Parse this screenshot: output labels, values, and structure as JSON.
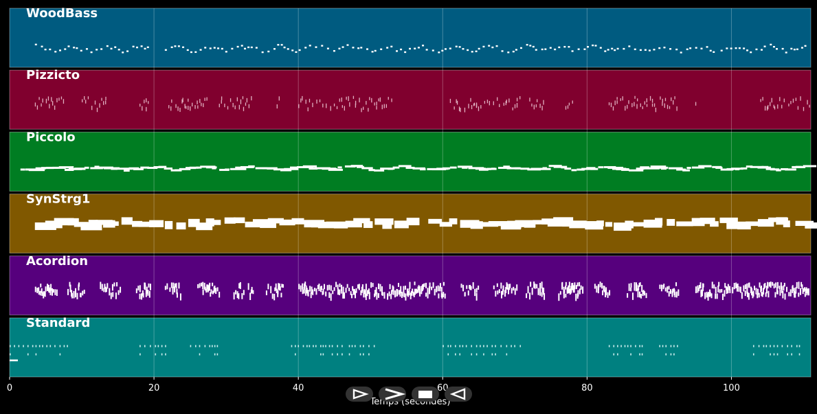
{
  "chart_data": {
    "type": "piano-roll",
    "xlabel": "Temps (secondes)",
    "xlim": [
      0,
      111
    ],
    "xticks": [
      0,
      20,
      40,
      60,
      80,
      100
    ],
    "grid": true,
    "tracks": [
      {
        "name": "WoodBass",
        "color": "#005b80",
        "style": "dots",
        "segments": [
          [
            3.5,
            19.5
          ],
          [
            21.5,
            97.5
          ],
          [
            98.5,
            110.5
          ]
        ],
        "density": 1.6,
        "level": 0.67
      },
      {
        "name": "Pizzicto",
        "color": "#80002e",
        "style": "ticks",
        "segments": [
          [
            3.5,
            7.5
          ],
          [
            10,
            13.5
          ],
          [
            18,
            19
          ],
          [
            22,
            27
          ],
          [
            29,
            33.5
          ],
          [
            37,
            37.5
          ],
          [
            40,
            50
          ],
          [
            50.5,
            53
          ],
          [
            61,
            67
          ],
          [
            67.5,
            71
          ],
          [
            72,
            74
          ],
          [
            77,
            78
          ],
          [
            83,
            92.5
          ],
          [
            95,
            95.5
          ],
          [
            104,
            110.5
          ]
        ],
        "density": 2.2,
        "level": 0.55
      },
      {
        "name": "Piccolo",
        "color": "#007d22",
        "style": "bars",
        "segments": [
          [
            1.5,
            110.5
          ]
        ],
        "density": 1.3,
        "level": 0.63
      },
      {
        "name": "SynStrg1",
        "color": "#805800",
        "style": "blocks",
        "segments": [
          [
            3.5,
            19.5
          ],
          [
            21.5,
            56
          ],
          [
            58,
            92.5
          ],
          [
            94.5,
            110.5
          ]
        ],
        "density": 0.8,
        "level": 0.52
      },
      {
        "name": "Acordion",
        "color": "#56007d",
        "style": "chords",
        "segments": [
          [
            3.5,
            6
          ],
          [
            8,
            10
          ],
          [
            12.5,
            15
          ],
          [
            17.5,
            19.5
          ],
          [
            21.5,
            23.5
          ],
          [
            26,
            28.5
          ],
          [
            31,
            32
          ],
          [
            33,
            33.5
          ],
          [
            35.5,
            37.5
          ],
          [
            40,
            60
          ],
          [
            62.5,
            65
          ],
          [
            67,
            69.5
          ],
          [
            71.5,
            74
          ],
          [
            76,
            79
          ],
          [
            81,
            83
          ],
          [
            85.5,
            87.5
          ],
          [
            90,
            92.5
          ],
          [
            95,
            110.5
          ]
        ],
        "density": 2.0,
        "level": 0.55
      },
      {
        "name": "Standard",
        "color": "#008080",
        "style": "drums",
        "segments": [
          [
            0,
            1
          ],
          [
            1.2,
            8
          ],
          [
            18,
            22
          ],
          [
            25,
            29
          ],
          [
            39,
            46
          ],
          [
            47,
            51
          ],
          [
            60,
            71
          ],
          [
            83,
            88
          ],
          [
            90,
            93
          ],
          [
            103,
            109.5
          ]
        ],
        "density": 1.8,
        "level": 0.6
      }
    ]
  },
  "player": {
    "play_icon": "play-icon",
    "forward_icon": "fast-forward-icon",
    "stop_icon": "stop-icon",
    "rewind_icon": "rewind-icon"
  }
}
